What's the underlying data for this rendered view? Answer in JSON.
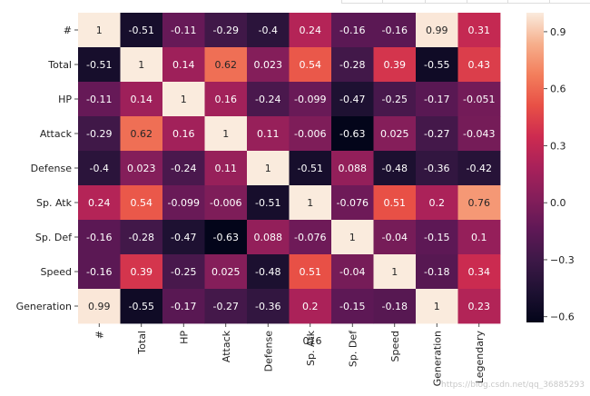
{
  "chart_data": {
    "type": "heatmap",
    "rows": [
      "#",
      "Total",
      "HP",
      "Attack",
      "Defense",
      "Sp. Atk",
      "Sp. Def",
      "Speed",
      "Generation"
    ],
    "columns": [
      "#",
      "Total",
      "HP",
      "Attack",
      "Defense",
      "Sp. Atk",
      "Sp. Def",
      "Speed",
      "Generation",
      "Legendary"
    ],
    "labels": [
      [
        "1",
        "-0.51",
        "-0.11",
        "-0.29",
        "-0.4",
        "0.24",
        "-0.16",
        "-0.16",
        "0.99",
        "0.31"
      ],
      [
        "-0.51",
        "1",
        "0.14",
        "0.62",
        "0.023",
        "0.54",
        "-0.28",
        "0.39",
        "-0.55",
        "0.43"
      ],
      [
        "-0.11",
        "0.14",
        "1",
        "0.16",
        "-0.24",
        "-0.099",
        "-0.47",
        "-0.25",
        "-0.17",
        "-0.051"
      ],
      [
        "-0.29",
        "0.62",
        "0.16",
        "1",
        "0.11",
        "-0.006",
        "-0.63",
        "0.025",
        "-0.27",
        "-0.043"
      ],
      [
        "-0.4",
        "0.023",
        "-0.24",
        "0.11",
        "1",
        "-0.51",
        "0.088",
        "-0.48",
        "-0.36",
        "-0.42"
      ],
      [
        "0.24",
        "0.54",
        "-0.099",
        "-0.006",
        "-0.51",
        "1",
        "-0.076",
        "0.51",
        "0.2",
        "0.76"
      ],
      [
        "-0.16",
        "-0.28",
        "-0.47",
        "-0.63",
        "0.088",
        "-0.076",
        "1",
        "-0.04",
        "-0.15",
        "0.1"
      ],
      [
        "-0.16",
        "0.39",
        "-0.25",
        "0.025",
        "-0.48",
        "0.51",
        "-0.04",
        "1",
        "-0.18",
        "0.34"
      ],
      [
        "0.99",
        "-0.55",
        "-0.17",
        "-0.27",
        "-0.36",
        "0.2",
        "-0.15",
        "-0.18",
        "1",
        "0.23"
      ]
    ],
    "values": [
      [
        1,
        -0.51,
        -0.11,
        -0.29,
        -0.4,
        0.24,
        -0.16,
        -0.16,
        0.99,
        0.31
      ],
      [
        -0.51,
        1,
        0.14,
        0.62,
        0.023,
        0.54,
        -0.28,
        0.39,
        -0.55,
        0.43
      ],
      [
        -0.11,
        0.14,
        1,
        0.16,
        -0.24,
        -0.099,
        -0.47,
        -0.25,
        -0.17,
        -0.051
      ],
      [
        -0.29,
        0.62,
        0.16,
        1,
        0.11,
        -0.006,
        -0.63,
        0.025,
        -0.27,
        -0.043
      ],
      [
        -0.4,
        0.023,
        -0.24,
        0.11,
        1,
        -0.51,
        0.088,
        -0.48,
        -0.36,
        -0.42
      ],
      [
        0.24,
        0.54,
        -0.099,
        -0.006,
        -0.51,
        1,
        -0.076,
        0.51,
        0.2,
        0.76
      ],
      [
        -0.16,
        -0.28,
        -0.47,
        -0.63,
        0.088,
        -0.076,
        1,
        -0.04,
        -0.15,
        0.1
      ],
      [
        -0.16,
        0.39,
        -0.25,
        0.025,
        -0.48,
        0.51,
        -0.04,
        1,
        -0.18,
        0.34
      ],
      [
        0.99,
        -0.55,
        -0.17,
        -0.27,
        -0.36,
        0.2,
        -0.15,
        -0.18,
        1,
        0.23
      ]
    ],
    "colorbar": {
      "range": [
        -0.63,
        1
      ],
      "ticks": [
        0.9,
        0.6,
        0.3,
        0.0,
        -0.3,
        -0.6
      ],
      "tick_labels": [
        "0.9",
        "0.6",
        "0.3",
        "0.0",
        "−0.3",
        "−0.6"
      ],
      "colormap": "rocket"
    },
    "overlay_text": "016",
    "title": "",
    "xlabel": "",
    "ylabel": ""
  },
  "watermark": "https://blog.csdn.net/qq_36885293"
}
